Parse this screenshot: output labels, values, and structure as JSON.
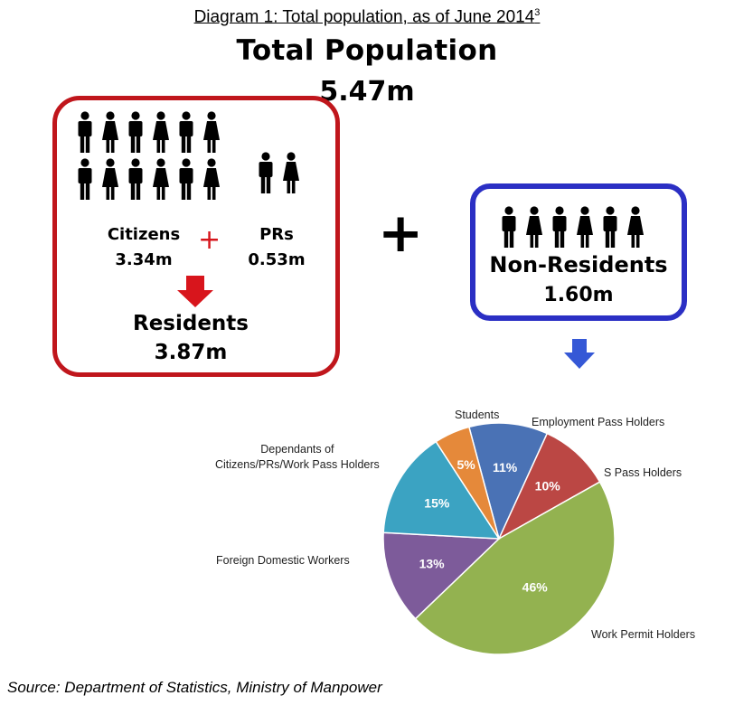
{
  "caption": {
    "text": "Diagram 1: Total population, as of June 2014",
    "note": "3"
  },
  "total": {
    "title": "Total Population",
    "value": "5.47m"
  },
  "residents": {
    "citizens_label": "Citizens",
    "citizens_value": "3.34m",
    "prs_label": "PRs",
    "prs_value": "0.53m",
    "plus": "+",
    "label": "Residents",
    "value": "3.87m",
    "color": "#c0161c"
  },
  "plus_big": "+",
  "non_residents": {
    "label": "Non-Residents",
    "value": "1.60m",
    "color": "#2b2fc4"
  },
  "chart_data": {
    "type": "pie",
    "slices": [
      {
        "name": "Employment Pass Holders",
        "value": 11,
        "label": "11%",
        "color": "#4a72b5"
      },
      {
        "name": "S Pass Holders",
        "value": 10,
        "label": "10%",
        "color": "#bb4744"
      },
      {
        "name": "Work Permit Holders",
        "value": 46,
        "label": "46%",
        "color": "#93b250"
      },
      {
        "name": "Foreign Domestic Workers",
        "value": 13,
        "label": "13%",
        "color": "#7d5b9a"
      },
      {
        "name_lines": [
          "Dependants of",
          "Citizens/PRs/Work Pass Holders"
        ],
        "name": "Dependants of Citizens/PRs/Work Pass Holders",
        "value": 15,
        "label": "15%",
        "color": "#3ba3c2"
      },
      {
        "name": "Students",
        "value": 5,
        "label": "5%",
        "color": "#e5893a"
      }
    ]
  },
  "source": "Source: Department of Statistics, Ministry of Manpower"
}
